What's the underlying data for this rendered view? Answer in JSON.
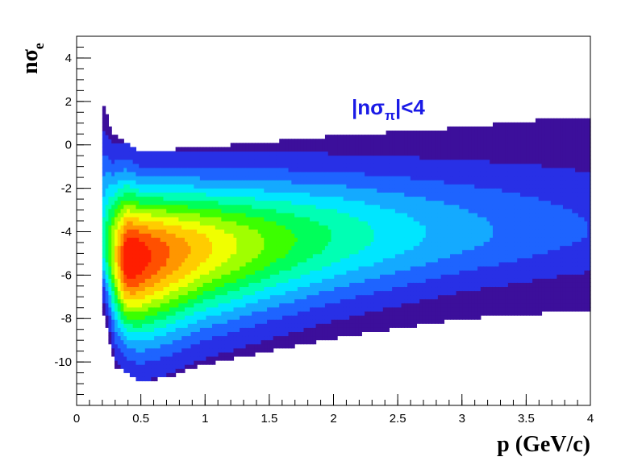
{
  "chart_data": {
    "type": "heatmap",
    "title": "",
    "xlabel": "p (GeV/c)",
    "ylabel": "nσ",
    "ylabel_subscript": "e",
    "xlim": [
      0,
      4
    ],
    "ylim": [
      -12,
      5
    ],
    "x_ticks": [
      "0",
      "0.5",
      "1",
      "1.5",
      "2",
      "2.5",
      "3",
      "3.5",
      "4"
    ],
    "y_ticks": [
      "-10",
      "-8",
      "-6",
      "-4",
      "-2",
      "0",
      "2",
      "4"
    ],
    "annotation": {
      "parts": [
        "|nσ",
        "π",
        "|<4"
      ],
      "color": "#1a1ae6"
    },
    "colormap": [
      "#3c0f9b",
      "#2830e6",
      "#1e64ff",
      "#14aaff",
      "#00e6ff",
      "#00ffb4",
      "#00ff5a",
      "#3cff00",
      "#a0ff00",
      "#f0ff00",
      "#ffcc00",
      "#ff9600",
      "#ff5000",
      "#ff1e00"
    ],
    "distribution": {
      "center_y": [
        [
          0.2,
          -4.5
        ],
        [
          0.35,
          -5.2
        ],
        [
          0.6,
          -5.0
        ],
        [
          1.0,
          -4.7
        ],
        [
          2.0,
          -4.2
        ],
        [
          3.0,
          -4.0
        ],
        [
          4.0,
          -3.9
        ]
      ],
      "upper_edge": [
        [
          0.2,
          2.1
        ],
        [
          0.28,
          0.5
        ],
        [
          0.5,
          -0.3
        ],
        [
          1.0,
          -0.1
        ],
        [
          2.0,
          0.4
        ],
        [
          3.0,
          0.8
        ],
        [
          3.5,
          1.1
        ],
        [
          4.0,
          1.3
        ]
      ],
      "lower_edge": [
        [
          0.2,
          -7.5
        ],
        [
          0.3,
          -10.2
        ],
        [
          0.5,
          -10.9
        ],
        [
          0.7,
          -10.7
        ],
        [
          1.0,
          -10.1
        ],
        [
          2.0,
          -8.9
        ],
        [
          3.0,
          -8.0
        ],
        [
          4.0,
          -7.6
        ]
      ],
      "peak_x": 0.45,
      "x_extent": [
        0.2,
        4.0
      ]
    }
  }
}
